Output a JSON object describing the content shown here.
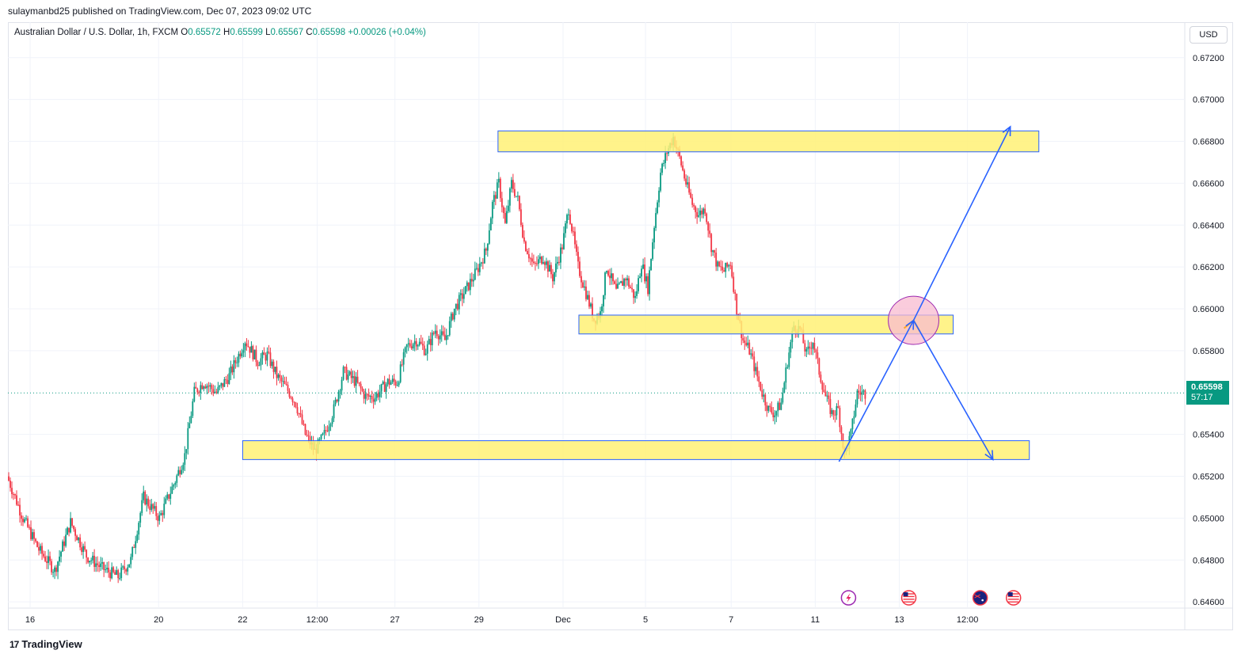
{
  "header": {
    "publisher": "sulaymanbd25 published on TradingView.com, Dec 07, 2023 09:02 UTC"
  },
  "legend": {
    "symbol": "Australian Dollar / U.S. Dollar, 1h, FXCM",
    "open_label": "O",
    "open": "0.65572",
    "high_label": "H",
    "high": "0.65599",
    "low_label": "L",
    "low": "0.65567",
    "close_label": "C",
    "close": "0.65598",
    "change": "+0.00026 (+0.04%)"
  },
  "currency": "USD",
  "last_price": {
    "value": "0.65598",
    "countdown": "57:17"
  },
  "footer": {
    "brand": "TradingView",
    "logo_icon": "tradingview-logo-icon"
  },
  "colors": {
    "up": "#089981",
    "down": "#f23645",
    "zone_fill": "#fff176",
    "zone_border": "#2962ff",
    "arrow": "#2962ff",
    "circle_fill": "#f8bbd0",
    "circle_stroke": "#9c27b0"
  },
  "chart_data": {
    "type": "candlestick",
    "symbol": "AUDUSD",
    "timeframe": "1h",
    "x_ticks": [
      "16",
      "20",
      "22",
      "12:00",
      "27",
      "29",
      "Dec",
      "5",
      "7",
      "11",
      "13",
      "12:00"
    ],
    "y_ticks": [
      0.672,
      0.67,
      0.668,
      0.666,
      0.664,
      0.662,
      0.66,
      0.658,
      0.654,
      0.652,
      0.65,
      0.648,
      0.646
    ],
    "y_tick_labels": [
      "0.67200",
      "0.67000",
      "0.66800",
      "0.66600",
      "0.66400",
      "0.66200",
      "0.66000",
      "0.65800",
      "0.65400",
      "0.65200",
      "0.65000",
      "0.64800",
      "0.64600"
    ],
    "ylim": [
      0.6454,
      0.6729
    ],
    "price_path": [
      [
        0,
        0.652
      ],
      [
        10,
        0.65
      ],
      [
        20,
        0.6485
      ],
      [
        30,
        0.6475
      ],
      [
        40,
        0.6498
      ],
      [
        50,
        0.6482
      ],
      [
        60,
        0.6476
      ],
      [
        70,
        0.6472
      ],
      [
        78,
        0.648
      ],
      [
        86,
        0.651
      ],
      [
        96,
        0.65
      ],
      [
        106,
        0.6518
      ],
      [
        112,
        0.653
      ],
      [
        118,
        0.656
      ],
      [
        124,
        0.6565
      ],
      [
        132,
        0.656
      ],
      [
        140,
        0.6568
      ],
      [
        146,
        0.6578
      ],
      [
        150,
        0.6585
      ],
      [
        158,
        0.6575
      ],
      [
        164,
        0.6578
      ],
      [
        170,
        0.6568
      ],
      [
        178,
        0.656
      ],
      [
        182,
        0.6555
      ],
      [
        188,
        0.654
      ],
      [
        194,
        0.6532
      ],
      [
        200,
        0.654
      ],
      [
        206,
        0.6552
      ],
      [
        212,
        0.657
      ],
      [
        220,
        0.6565
      ],
      [
        226,
        0.6558
      ],
      [
        232,
        0.6558
      ],
      [
        240,
        0.6565
      ],
      [
        246,
        0.6565
      ],
      [
        252,
        0.6582
      ],
      [
        258,
        0.6585
      ],
      [
        264,
        0.658
      ],
      [
        270,
        0.659
      ],
      [
        276,
        0.6585
      ],
      [
        282,
        0.66
      ],
      [
        290,
        0.661
      ],
      [
        296,
        0.6618
      ],
      [
        302,
        0.6628
      ],
      [
        306,
        0.665
      ],
      [
        310,
        0.666
      ],
      [
        314,
        0.664
      ],
      [
        318,
        0.666
      ],
      [
        322,
        0.6652
      ],
      [
        326,
        0.6632
      ],
      [
        332,
        0.662
      ],
      [
        338,
        0.6625
      ],
      [
        344,
        0.6615
      ],
      [
        350,
        0.663
      ],
      [
        354,
        0.6648
      ],
      [
        360,
        0.662
      ],
      [
        366,
        0.6605
      ],
      [
        370,
        0.6595
      ],
      [
        374,
        0.6598
      ],
      [
        378,
        0.662
      ],
      [
        384,
        0.6608
      ],
      [
        390,
        0.6615
      ],
      [
        396,
        0.6605
      ],
      [
        400,
        0.6622
      ],
      [
        404,
        0.661
      ],
      [
        408,
        0.664
      ],
      [
        412,
        0.6665
      ],
      [
        416,
        0.6675
      ],
      [
        420,
        0.6682
      ],
      [
        424,
        0.6672
      ],
      [
        428,
        0.666
      ],
      [
        432,
        0.665
      ],
      [
        436,
        0.6645
      ],
      [
        440,
        0.6648
      ],
      [
        444,
        0.663
      ],
      [
        448,
        0.662
      ],
      [
        452,
        0.6618
      ],
      [
        456,
        0.6622
      ],
      [
        460,
        0.66
      ],
      [
        464,
        0.6585
      ],
      [
        468,
        0.658
      ],
      [
        472,
        0.657
      ],
      [
        476,
        0.656
      ],
      [
        480,
        0.6552
      ],
      [
        484,
        0.655
      ],
      [
        488,
        0.6555
      ],
      [
        492,
        0.6575
      ],
      [
        496,
        0.6592
      ],
      [
        500,
        0.659
      ],
      [
        504,
        0.6578
      ],
      [
        508,
        0.6585
      ],
      [
        512,
        0.657
      ],
      [
        516,
        0.6558
      ],
      [
        520,
        0.655
      ],
      [
        524,
        0.6552
      ],
      [
        528,
        0.653
      ],
      [
        532,
        0.654
      ],
      [
        536,
        0.656
      ],
      [
        540,
        0.65598
      ]
    ],
    "zones": [
      {
        "from": 309,
        "to": 650,
        "top": 0.6685,
        "bottom": 0.6675
      },
      {
        "from": 360,
        "to": 596,
        "top": 0.6597,
        "bottom": 0.6588
      },
      {
        "from": 148,
        "to": 644,
        "top": 0.6537,
        "bottom": 0.6528
      }
    ],
    "arrows": [
      {
        "from": [
          524,
          0.6527
        ],
        "to": [
          571,
          0.65945
        ]
      },
      {
        "from": [
          571,
          0.65945
        ],
        "to": [
          632,
          0.6687
        ]
      },
      {
        "from": [
          571,
          0.65945
        ],
        "to": [
          621,
          0.6528
        ]
      }
    ],
    "circle": {
      "center": [
        571,
        0.65945
      ],
      "radius_price": 0.00115
    },
    "x_range": [
      0,
      742
    ],
    "last_price": 0.65598,
    "event_icons": [
      {
        "x": 530,
        "icon": "lightning-event-icon"
      },
      {
        "x": 568,
        "icon": "us-flag-event-icon"
      },
      {
        "x": 613,
        "icon": "au-flag-event-icon"
      },
      {
        "x": 634,
        "icon": "us-flag-event-icon"
      }
    ]
  }
}
